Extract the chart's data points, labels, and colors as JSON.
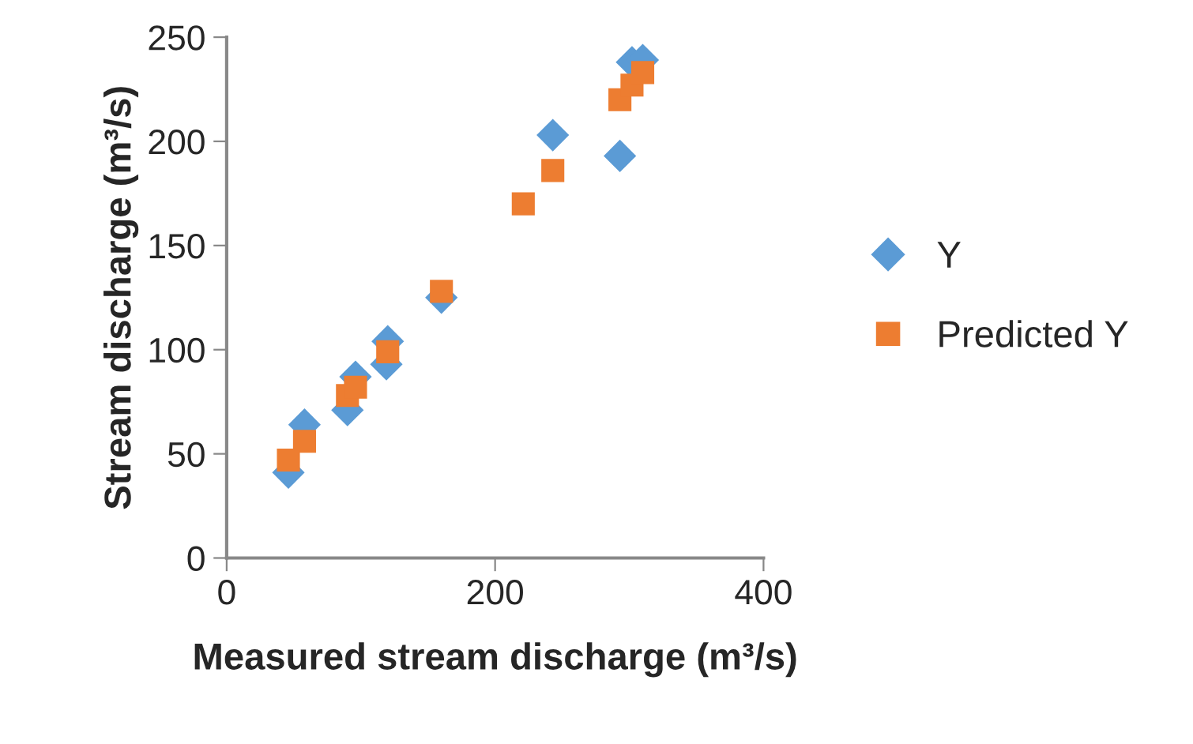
{
  "chart_data": {
    "type": "scatter",
    "xlabel": "Measured stream discharge (m³/s)",
    "ylabel": "Stream discharge (m³/s)",
    "xlim": [
      0,
      400
    ],
    "xticks": [
      0,
      200,
      400
    ],
    "ylim": [
      0,
      250
    ],
    "yticks": [
      0,
      50,
      100,
      150,
      200,
      250
    ],
    "grid": false,
    "legend": "right",
    "series": [
      {
        "name": "Y",
        "color": "#5b9bd5",
        "marker": "diamond",
        "x": [
          46,
          58,
          90,
          96,
          120,
          119,
          160,
          243,
          293,
          302,
          310
        ],
        "values": [
          41,
          64,
          71,
          87,
          104,
          93,
          125,
          203,
          193,
          238,
          239
        ]
      },
      {
        "name": "Predicted Y",
        "color": "#ed7d31",
        "marker": "square",
        "x": [
          46,
          58,
          90,
          96,
          120,
          160,
          221,
          243,
          293,
          302,
          310
        ],
        "values": [
          47,
          56,
          78,
          82,
          99,
          128,
          170,
          186,
          220,
          227,
          233
        ]
      }
    ]
  }
}
